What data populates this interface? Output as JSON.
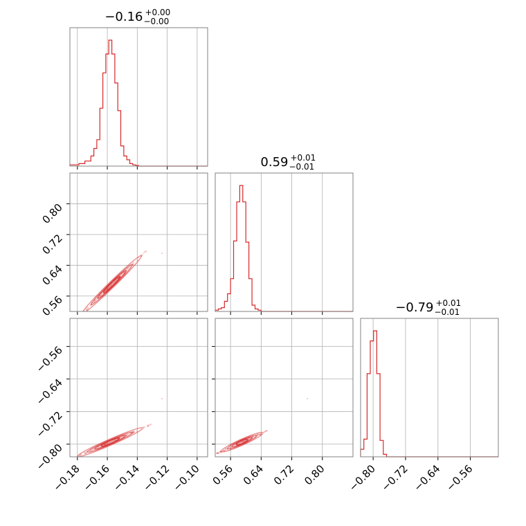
{
  "chart_data": {
    "type": "corner",
    "color": "#d62728",
    "grid": true,
    "parameters": [
      {
        "title_value": "−0.16",
        "title_plus": "+0.00",
        "title_minus": "−0.00",
        "range": [
          -0.185,
          -0.093
        ],
        "ticks": [
          -0.18,
          -0.16,
          -0.14,
          -0.12,
          -0.1
        ],
        "tick_labels": [
          "−0.18",
          "−0.16",
          "−0.14",
          "−0.12",
          "−0.10"
        ]
      },
      {
        "title_value": "0.59",
        "title_plus": "+0.01",
        "title_minus": "−0.01",
        "range": [
          0.52,
          0.88
        ],
        "ticks": [
          0.56,
          0.64,
          0.72,
          0.8
        ],
        "tick_labels": [
          "0.56",
          "0.64",
          "0.72",
          "0.80"
        ]
      },
      {
        "title_value": "−0.79",
        "title_plus": "+0.01",
        "title_minus": "−0.01",
        "range": [
          -0.831,
          -0.491
        ],
        "ticks": [
          -0.8,
          -0.72,
          -0.64,
          -0.56
        ],
        "tick_labels": [
          "−0.80",
          "−0.72",
          "−0.64",
          "−0.56"
        ]
      }
    ],
    "histograms": [
      {
        "x": [
          -0.185,
          -0.183,
          -0.181,
          -0.179,
          -0.177,
          -0.175,
          -0.173,
          -0.171,
          -0.169,
          -0.167,
          -0.165,
          -0.163,
          -0.161,
          -0.159,
          -0.157,
          -0.155,
          -0.153,
          -0.151,
          -0.149,
          -0.147,
          -0.145,
          -0.143,
          -0.141,
          -0.139
        ],
        "y": [
          0.01,
          0.01,
          0.01,
          0.02,
          0.02,
          0.04,
          0.04,
          0.08,
          0.14,
          0.21,
          0.46,
          0.74,
          0.89,
          1.0,
          0.89,
          0.66,
          0.44,
          0.16,
          0.08,
          0.05,
          0.02,
          0.01,
          0.005,
          0.0
        ]
      },
      {
        "x": [
          0.52,
          0.528,
          0.536,
          0.544,
          0.552,
          0.56,
          0.568,
          0.576,
          0.584,
          0.592,
          0.6,
          0.608,
          0.616,
          0.624,
          0.632,
          0.64
        ],
        "y": [
          0.01,
          0.02,
          0.03,
          0.08,
          0.14,
          0.26,
          0.56,
          0.87,
          1.0,
          0.87,
          0.55,
          0.26,
          0.05,
          0.02,
          0.01,
          0.0
        ]
      },
      {
        "x": [
          -0.831,
          -0.823,
          -0.815,
          -0.807,
          -0.799,
          -0.791,
          -0.783,
          -0.775,
          -0.767
        ],
        "y": [
          0.06,
          0.14,
          0.66,
          0.92,
          1.0,
          0.66,
          0.13,
          0.02,
          0.0
        ]
      }
    ],
    "pairs": [
      {
        "row": 1,
        "col": 0,
        "center": [
          -0.157,
          0.59
        ],
        "slope": 3.8,
        "half_length": 0.02,
        "width": 0.0008
      },
      {
        "row": 2,
        "col": 0,
        "center": [
          -0.158,
          -0.795
        ],
        "slope": 1.6,
        "half_length": 0.022,
        "width": 0.0013
      },
      {
        "row": 2,
        "col": 1,
        "center": [
          0.59,
          -0.795
        ],
        "slope": 0.42,
        "half_length": 0.055,
        "width": 0.003
      }
    ]
  }
}
